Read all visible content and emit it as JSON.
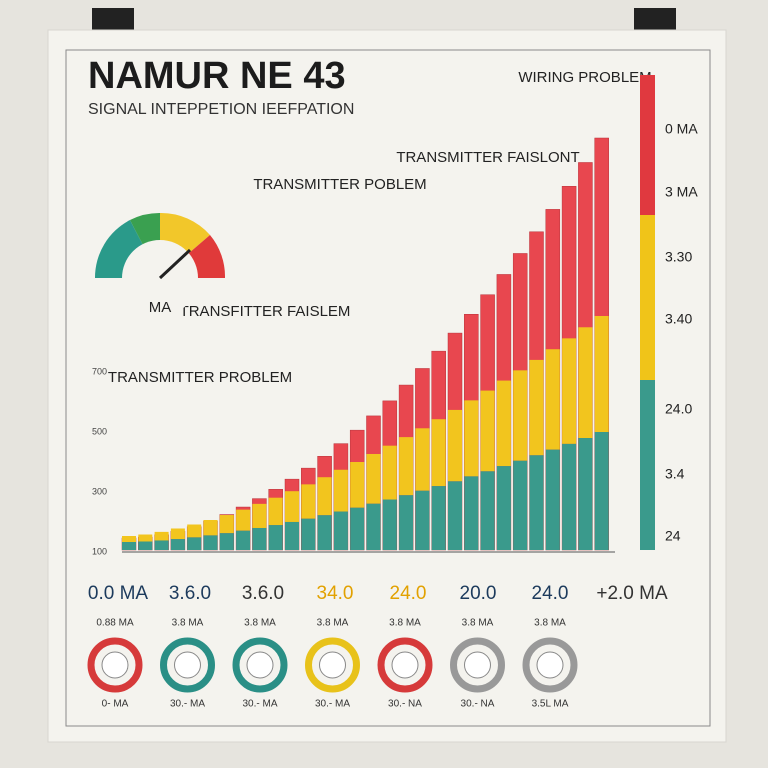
{
  "header": {
    "title": "NAMUR NE 43",
    "subtitle": "SIGNAL INTEPPETION IEEFPATION"
  },
  "annotations": [
    {
      "label": "WIRING PROBLEM"
    },
    {
      "label": "TRANSMITTER FAISLONT"
    },
    {
      "label": "TRANSMITTER POBLEM"
    },
    {
      "label": "TRANSFITTER FAISLEM"
    },
    {
      "label": "TRANSMITTER PROBLEM"
    }
  ],
  "gauge": {
    "label": "MA"
  },
  "left_scale": [
    "700",
    "500",
    "300",
    "100"
  ],
  "right_scale": [
    "0 MA",
    "3 MA",
    "3.30",
    "3.40",
    "24.0",
    "3.4",
    "24"
  ],
  "bottom_labels": [
    "0.0 MA",
    "3.6.0",
    "3.6.0",
    "34.0",
    "24.0",
    "20.0",
    "24.0",
    "+2.0 MA"
  ],
  "circles": [
    {
      "top": "0.88 MA",
      "bottom": "0- MA"
    },
    {
      "top": "3.8 MA",
      "bottom": "30.- MA"
    },
    {
      "top": "3.8 MA",
      "bottom": "30.- MA"
    },
    {
      "top": "3.8 MA",
      "bottom": "30.- MA"
    },
    {
      "top": "3.8 MA",
      "bottom": "30.- NA"
    },
    {
      "top": "3.8 MA",
      "bottom": "30.- NA"
    },
    {
      "top": "3.8 MA",
      "bottom": "3.5L MA"
    }
  ]
}
